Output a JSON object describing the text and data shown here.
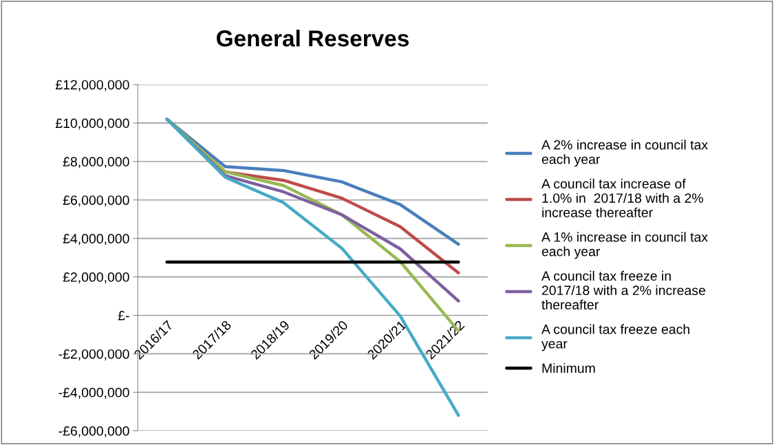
{
  "chart_data": {
    "type": "line",
    "title": "General Reserves",
    "categories": [
      "2016/17",
      "2017/18",
      "2018/19",
      "2019/20",
      "2020/21",
      "2021/22"
    ],
    "series": [
      {
        "name": "A 2% increase in council tax\neach year",
        "color": "#4a7ebb",
        "values": [
          10200000,
          7730000,
          7530000,
          6940000,
          5760000,
          3700000
        ]
      },
      {
        "name": "A council tax increase of\n1.0% in  2017/18 with a 2%\nincrease thereafter",
        "color": "#be4b48",
        "values": [
          10200000,
          7460000,
          7020000,
          6090000,
          4610000,
          2210000
        ]
      },
      {
        "name": "A 1% increase in council tax\neach year",
        "color": "#98b954",
        "values": [
          10200000,
          7460000,
          6750000,
          5230000,
          2800000,
          -810000
        ]
      },
      {
        "name": "A council tax freeze in\n2017/18 with a 2% increase\nthereafter",
        "color": "#7d60a0",
        "values": [
          10200000,
          7260000,
          6420000,
          5230000,
          3460000,
          750000
        ]
      },
      {
        "name": "A council tax freeze each\nyear",
        "color": "#46aac5",
        "values": [
          10200000,
          7180000,
          5860000,
          3490000,
          -30000,
          -5200000
        ]
      },
      {
        "name": "Minimum",
        "color": "#000000",
        "values": [
          2770000,
          2770000,
          2770000,
          2770000,
          2770000,
          2770000
        ]
      }
    ],
    "ylim": [
      -6000000,
      12000000
    ],
    "yticks": [
      {
        "value": -6000000,
        "label": "-£6,000,000"
      },
      {
        "value": -4000000,
        "label": "-£4,000,000"
      },
      {
        "value": -2000000,
        "label": "-£2,000,000"
      },
      {
        "value": 0,
        "label": "£-"
      },
      {
        "value": 2000000,
        "label": "£2,000,000"
      },
      {
        "value": 4000000,
        "label": "£4,000,000"
      },
      {
        "value": 6000000,
        "label": "£6,000,000"
      },
      {
        "value": 8000000,
        "label": "£8,000,000"
      },
      {
        "value": 10000000,
        "label": "£10,000,000"
      },
      {
        "value": 12000000,
        "label": "£12,000,000"
      }
    ],
    "grid": "y",
    "legend": "right",
    "marker": "none",
    "line_style": "solid"
  }
}
